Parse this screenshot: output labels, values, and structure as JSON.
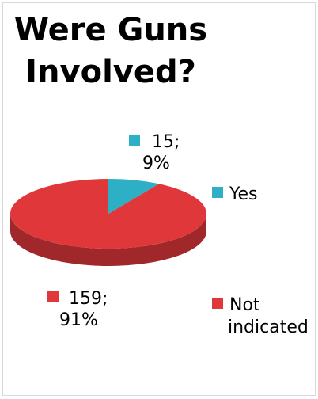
{
  "chart_data": {
    "type": "pie",
    "title": "Were Guns Involved?",
    "title_lines": [
      "Were Guns",
      "Involved?"
    ],
    "categories": [
      "Yes",
      "Not indicated"
    ],
    "values": [
      15,
      159
    ],
    "percents": [
      "9%",
      "91%"
    ],
    "colors": [
      "#2DAFC6",
      "#E0383A"
    ],
    "data_labels": [
      {
        "lines": [
          "15;",
          "9%"
        ]
      },
      {
        "lines": [
          "159;",
          "91%"
        ]
      }
    ],
    "legend": [
      {
        "lines": [
          "Yes"
        ]
      },
      {
        "lines": [
          "Not",
          "indicated"
        ]
      }
    ],
    "legend_position": "right",
    "style": "3d"
  }
}
